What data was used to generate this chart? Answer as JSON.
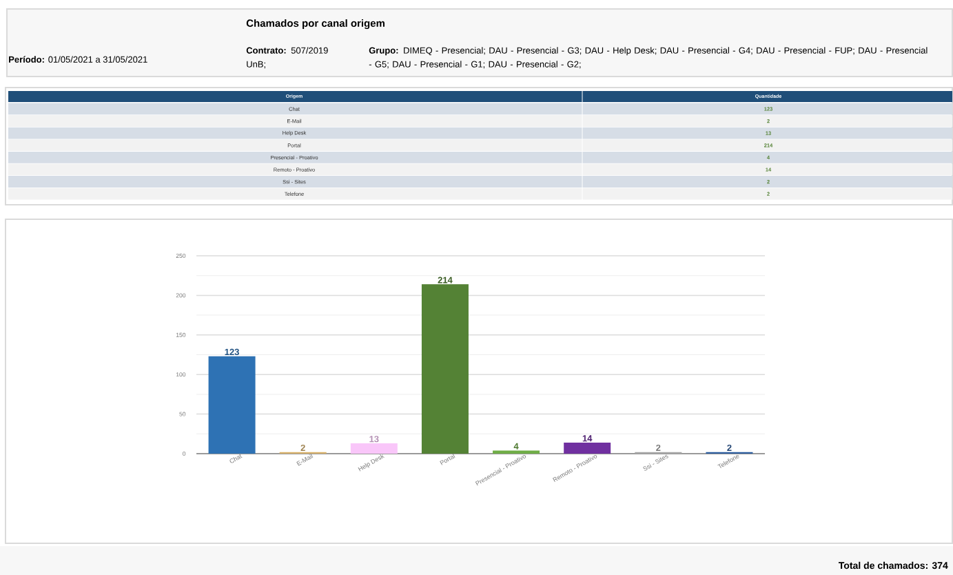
{
  "chart_data": {
    "type": "bar",
    "title": "Chamados por canal origem",
    "annotations": [
      "**Período:** 01/05/2021 a 31/05/2021",
      "**Contrato:** 507/2019 UnB;",
      "**Grupo:** DIMEQ - Presencial; DAU - Presencial - G3; DAU - Help Desk; DAU - Presencial - G4; DAU - Presencial - FUP; DAU - Presencial - G5; DAU - Presencial - G1; DAU - Presencial - G2;",
      "Origem",
      "Quantidade",
      "Total de chamados: 374"
    ],
    "categories": [
      "Chat",
      "E-Mail",
      "Help Desk",
      "Portal",
      "Presencial - Proativo",
      "Remoto - Proativo",
      "Ssi - Sites",
      "Telefone"
    ],
    "values": [
      123,
      2,
      13,
      214,
      4,
      14,
      2,
      2
    ],
    "value_labels": [
      "123",
      "2",
      "13",
      "214",
      "4",
      "14",
      "2",
      "2"
    ],
    "colors": [
      "#2e72b4",
      "#d9b26b",
      "#f9c6f9",
      "#548235",
      "#70ad47",
      "#7030a0",
      "#a6a6a6",
      "#2f5fa0"
    ],
    "ylim": [
      0,
      250
    ],
    "yticks": [
      0,
      50,
      100,
      150,
      200,
      250
    ],
    "grid": "y"
  }
}
